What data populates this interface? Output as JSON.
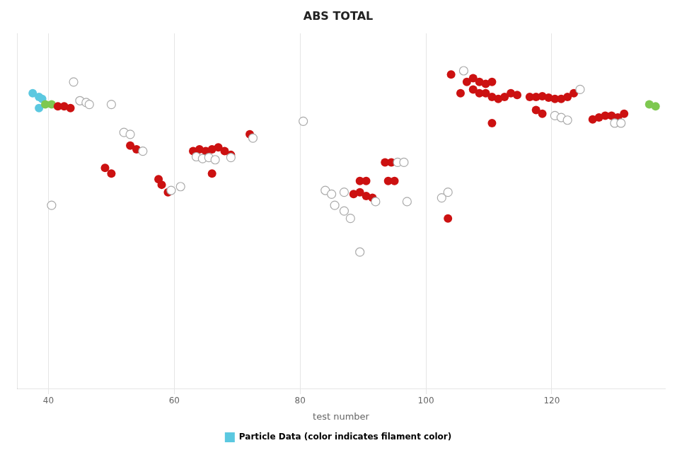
{
  "chart_data": {
    "type": "scatter",
    "title": "ABS TOTAL",
    "xlabel": "test number",
    "xlim": [
      35,
      138
    ],
    "xticks": [
      40,
      60,
      80,
      100,
      120
    ],
    "ylim": [
      0,
      950
    ],
    "tick_labels": "x",
    "grid": true,
    "legend": "bottom",
    "series": [
      {
        "name": "Particle Data (color indicates filament color)",
        "color": "#5bc8e0",
        "x": [
          37.5,
          38.5,
          38.5,
          39.0,
          39.5,
          40.5,
          41.5,
          42.5,
          43.5,
          44.0,
          45.0,
          46.0,
          46.5,
          50.0,
          52.0,
          53.0,
          53.0,
          54.0,
          55.0,
          49.0,
          50.0,
          40.5,
          57.5,
          58.0,
          59.0,
          59.5,
          61.0,
          63.0,
          64.0,
          65.0,
          66.0,
          67.0,
          68.0,
          69.0,
          63.5,
          64.5,
          65.5,
          66.5,
          69.0,
          66.0,
          72.0,
          72.5,
          80.5,
          84.0,
          85.0,
          87.0,
          85.5,
          87.0,
          88.0,
          89.5,
          90.5,
          88.5,
          89.5,
          90.5,
          91.5,
          92.0,
          89.5,
          93.5,
          94.5,
          95.5,
          96.5,
          94.0,
          95.0,
          97.0,
          102.5,
          103.5,
          103.5,
          104.0,
          105.5,
          106.5,
          107.5,
          108.5,
          109.5,
          110.5,
          106.0,
          107.5,
          108.5,
          109.5,
          110.5,
          111.5,
          112.5,
          113.5,
          114.5,
          110.5,
          116.5,
          117.5,
          118.5,
          119.5,
          120.5,
          121.5,
          122.5,
          123.5,
          124.5,
          117.5,
          118.5,
          120.5,
          121.5,
          122.5,
          126.5,
          127.5,
          128.5,
          129.5,
          130.5,
          130.0,
          131.0,
          131.5,
          135.5,
          136.5
        ],
        "values": [
          790,
          780,
          750,
          775,
          760,
          760,
          755,
          755,
          750,
          820,
          770,
          765,
          760,
          760,
          685,
          680,
          650,
          640,
          635,
          590,
          575,
          490,
          560,
          545,
          525,
          530,
          540,
          635,
          640,
          635,
          640,
          645,
          635,
          625,
          620,
          615,
          618,
          612,
          618,
          575,
          680,
          670,
          715,
          530,
          520,
          525,
          490,
          475,
          455,
          555,
          555,
          520,
          525,
          515,
          510,
          500,
          365,
          605,
          605,
          605,
          605,
          555,
          555,
          500,
          510,
          525,
          455,
          840,
          790,
          820,
          830,
          820,
          815,
          820,
          850,
          800,
          790,
          790,
          780,
          775,
          780,
          790,
          785,
          710,
          780,
          780,
          782,
          778,
          775,
          775,
          780,
          790,
          800,
          745,
          735,
          730,
          725,
          718,
          720,
          725,
          730,
          730,
          725,
          710,
          710,
          735,
          760,
          755
        ],
        "colors": [
          "#5bc8e0",
          "#5bc8e0",
          "#5bc8e0",
          "#5bc8e0",
          "#7ec850",
          "#7ec850",
          "#cc1111",
          "#cc1111",
          "#cc1111",
          "white",
          "white",
          "white",
          "white",
          "white",
          "white",
          "white",
          "#cc1111",
          "#cc1111",
          "white",
          "#cc1111",
          "#cc1111",
          "white",
          "#cc1111",
          "#cc1111",
          "#cc1111",
          "white",
          "white",
          "#cc1111",
          "#cc1111",
          "#cc1111",
          "#cc1111",
          "#cc1111",
          "#cc1111",
          "#cc1111",
          "white",
          "white",
          "white",
          "white",
          "white",
          "#cc1111",
          "#cc1111",
          "white",
          "white",
          "white",
          "white",
          "white",
          "white",
          "white",
          "white",
          "#cc1111",
          "#cc1111",
          "#cc1111",
          "#cc1111",
          "#cc1111",
          "#cc1111",
          "white",
          "white",
          "#cc1111",
          "#cc1111",
          "white",
          "white",
          "#cc1111",
          "#cc1111",
          "white",
          "white",
          "white",
          "#cc1111",
          "#cc1111",
          "#cc1111",
          "#cc1111",
          "#cc1111",
          "#cc1111",
          "#cc1111",
          "#cc1111",
          "white",
          "#cc1111",
          "#cc1111",
          "#cc1111",
          "#cc1111",
          "#cc1111",
          "#cc1111",
          "#cc1111",
          "#cc1111",
          "#cc1111",
          "#cc1111",
          "#cc1111",
          "#cc1111",
          "#cc1111",
          "#cc1111",
          "#cc1111",
          "#cc1111",
          "#cc1111",
          "white",
          "#cc1111",
          "#cc1111",
          "white",
          "white",
          "white",
          "#cc1111",
          "#cc1111",
          "#cc1111",
          "#cc1111",
          "#cc1111",
          "white",
          "white",
          "#cc1111",
          "#7ec850",
          "#7ec850"
        ]
      }
    ]
  }
}
